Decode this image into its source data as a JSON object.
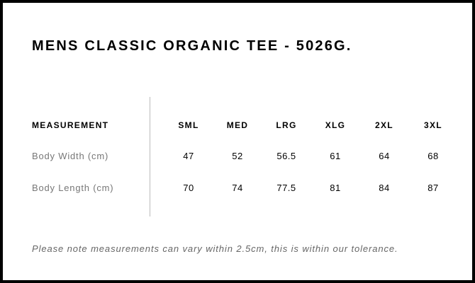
{
  "title": "MENS CLASSIC ORGANIC TEE - 5026G.",
  "table": {
    "header_label": "MEASUREMENT",
    "sizes": [
      "SML",
      "MED",
      "LRG",
      "XLG",
      "2XL",
      "3XL"
    ],
    "rows": [
      {
        "label": "Body Width (cm)",
        "values": [
          "47",
          "52",
          "56.5",
          "61",
          "64",
          "68"
        ]
      },
      {
        "label": "Body Length (cm)",
        "values": [
          "70",
          "74",
          "77.5",
          "81",
          "84",
          "87"
        ]
      }
    ]
  },
  "note": "Please note measurements can vary within 2.5cm, this is within our tolerance."
}
